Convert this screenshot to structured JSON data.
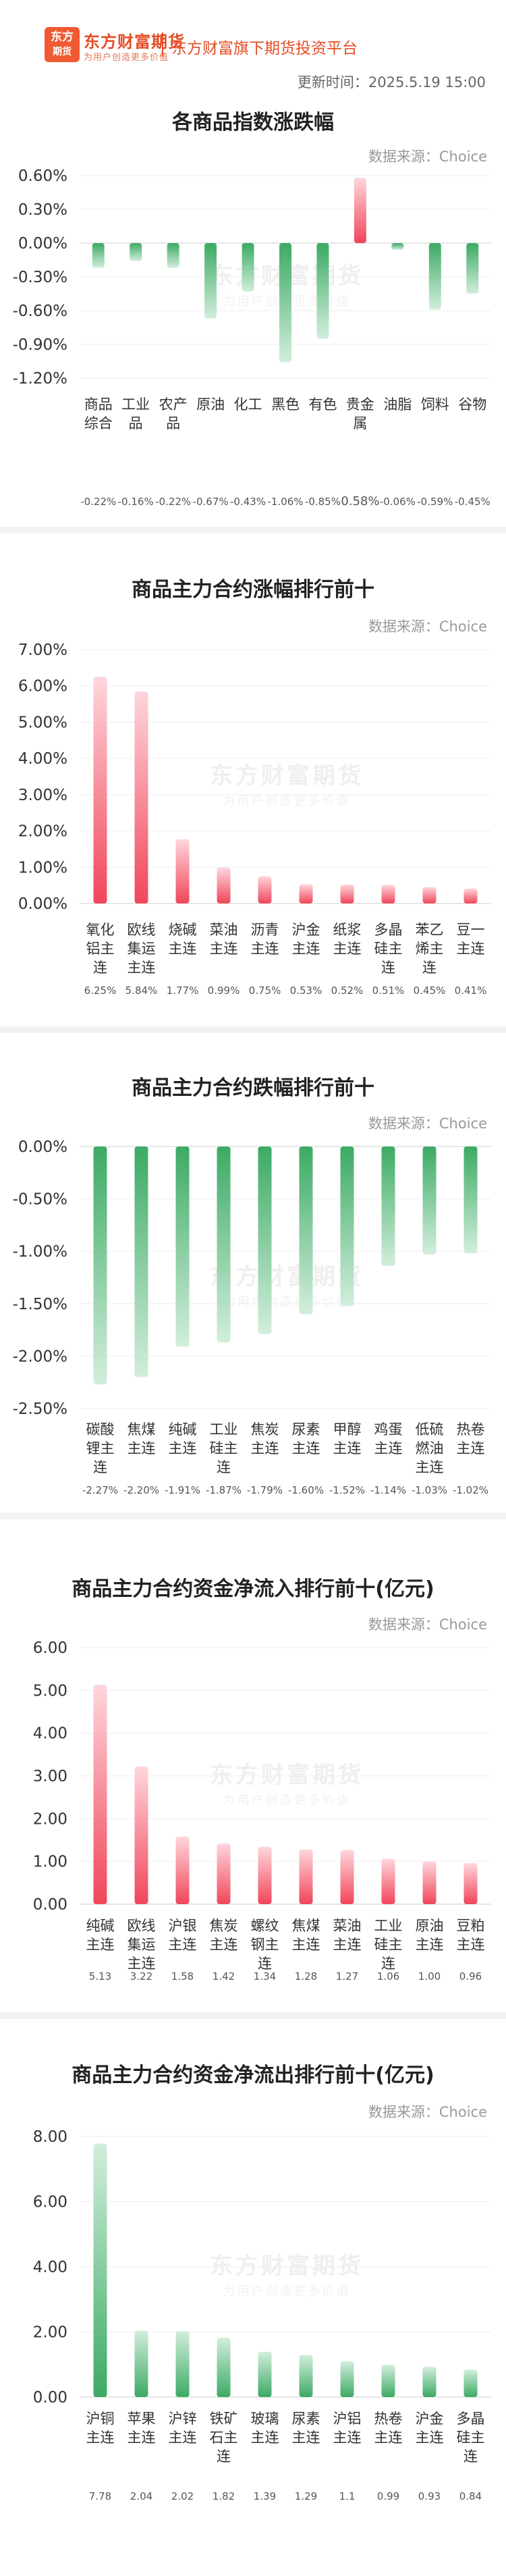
{
  "header": {
    "logo_glyph_top": "东方",
    "logo_glyph_bottom": "期货",
    "logo_title": "东方财富期货",
    "logo_subtitle": "为用户创造更多价值",
    "platform": "东方财富旗下期货投资平台",
    "update_time": "更新时间：2025.5.19 15:00"
  },
  "source_label": "数据来源：Choice",
  "watermark": {
    "main": "东方财富期货",
    "sub": "为用户创造更多价值"
  },
  "colors": {
    "up": "#f0465a",
    "up_light": "#ffd6dc",
    "down": "#3caa64",
    "down_light": "#d2eedc",
    "axis_text": "#333333",
    "grid": "#eeeeee"
  },
  "chart_data": [
    {
      "id": "index",
      "type": "bar",
      "title": "各商品指数涨跌幅",
      "categories": [
        "商品综合",
        "工业品",
        "农产品",
        "原油",
        "化工",
        "黑色",
        "有色",
        "贵金属",
        "油脂",
        "饲料",
        "谷物"
      ],
      "values": [
        -0.22,
        -0.16,
        -0.22,
        -0.67,
        -0.43,
        -1.06,
        -0.85,
        0.58,
        -0.06,
        -0.59,
        -0.45
      ],
      "value_labels": [
        "-0.22%",
        "-0.16%",
        "-0.22%",
        "-0.67%",
        "-0.43%",
        "-1.06%",
        "-0.85%",
        "0.58%",
        "-0.06%",
        "-0.59%",
        "-0.45%"
      ],
      "y_ticks": [
        "0.60%",
        "0.30%",
        "0.00%",
        "-0.30%",
        "-0.60%",
        "-0.90%",
        "-1.20%"
      ],
      "ylim": [
        -1.2,
        0.6
      ]
    },
    {
      "id": "gainers",
      "type": "bar",
      "title": "商品主力合约涨幅排行前十",
      "categories": [
        "氧化铝主连",
        "欧线集运主连",
        "烧碱主连",
        "菜油主连",
        "沥青主连",
        "沪金主连",
        "纸浆主连",
        "多晶硅主连",
        "苯乙烯主连",
        "豆一主连"
      ],
      "values": [
        6.25,
        5.84,
        1.77,
        0.99,
        0.75,
        0.53,
        0.52,
        0.51,
        0.45,
        0.41
      ],
      "value_labels": [
        "6.25%",
        "5.84%",
        "1.77%",
        "0.99%",
        "0.75%",
        "0.53%",
        "0.52%",
        "0.51%",
        "0.45%",
        "0.41%"
      ],
      "y_ticks": [
        "7.00%",
        "6.00%",
        "5.00%",
        "4.00%",
        "3.00%",
        "2.00%",
        "1.00%",
        "0.00%"
      ],
      "ylim": [
        0,
        7
      ]
    },
    {
      "id": "losers",
      "type": "bar",
      "title": "商品主力合约跌幅排行前十",
      "categories": [
        "碳酸锂主连",
        "焦煤主连",
        "纯碱主连",
        "工业硅主连",
        "焦炭主连",
        "尿素主连",
        "甲醇主连",
        "鸡蛋主连",
        "低硫燃油主连",
        "热卷主连"
      ],
      "values": [
        -2.27,
        -2.2,
        -1.91,
        -1.87,
        -1.79,
        -1.6,
        -1.52,
        -1.14,
        -1.03,
        -1.02
      ],
      "value_labels": [
        "-2.27%",
        "-2.20%",
        "-1.91%",
        "-1.87%",
        "-1.79%",
        "-1.60%",
        "-1.52%",
        "-1.14%",
        "-1.03%",
        "-1.02%"
      ],
      "y_ticks": [
        "0.00%",
        "-0.50%",
        "-1.00%",
        "-1.50%",
        "-2.00%",
        "-2.50%"
      ],
      "ylim": [
        -2.5,
        0
      ]
    },
    {
      "id": "inflow",
      "type": "bar",
      "title": "商品主力合约资金净流入排行前十(亿元)",
      "categories": [
        "纯碱主连",
        "欧线集运主连",
        "沪银主连",
        "焦炭主连",
        "螺纹钢主连",
        "焦煤主连",
        "菜油主连",
        "工业硅主连",
        "原油主连",
        "豆粕主连"
      ],
      "values": [
        5.13,
        3.22,
        1.58,
        1.42,
        1.34,
        1.28,
        1.27,
        1.06,
        1.0,
        0.96
      ],
      "value_labels": [
        "5.13",
        "3.22",
        "1.58",
        "1.42",
        "1.34",
        "1.28",
        "1.27",
        "1.06",
        "1.00",
        "0.96"
      ],
      "y_ticks": [
        "6.00",
        "5.00",
        "4.00",
        "3.00",
        "2.00",
        "1.00",
        "0.00"
      ],
      "ylim": [
        0,
        6
      ]
    },
    {
      "id": "outflow",
      "type": "bar",
      "title": "商品主力合约资金净流出排行前十(亿元)",
      "categories": [
        "沪铜主连",
        "苹果主连",
        "沪锌主连",
        "铁矿石主连",
        "玻璃主连",
        "尿素主连",
        "沪铝主连",
        "热卷主连",
        "沪金主连",
        "多晶硅主连"
      ],
      "values": [
        7.78,
        2.04,
        2.02,
        1.82,
        1.39,
        1.29,
        1.1,
        0.99,
        0.93,
        0.84
      ],
      "value_labels": [
        "7.78",
        "2.04",
        "2.02",
        "1.82",
        "1.39",
        "1.29",
        "1.1",
        "0.99",
        "0.93",
        "0.84"
      ],
      "y_ticks": [
        "8.00",
        "6.00",
        "4.00",
        "2.00",
        "0.00"
      ],
      "ylim": [
        0,
        8
      ]
    }
  ]
}
